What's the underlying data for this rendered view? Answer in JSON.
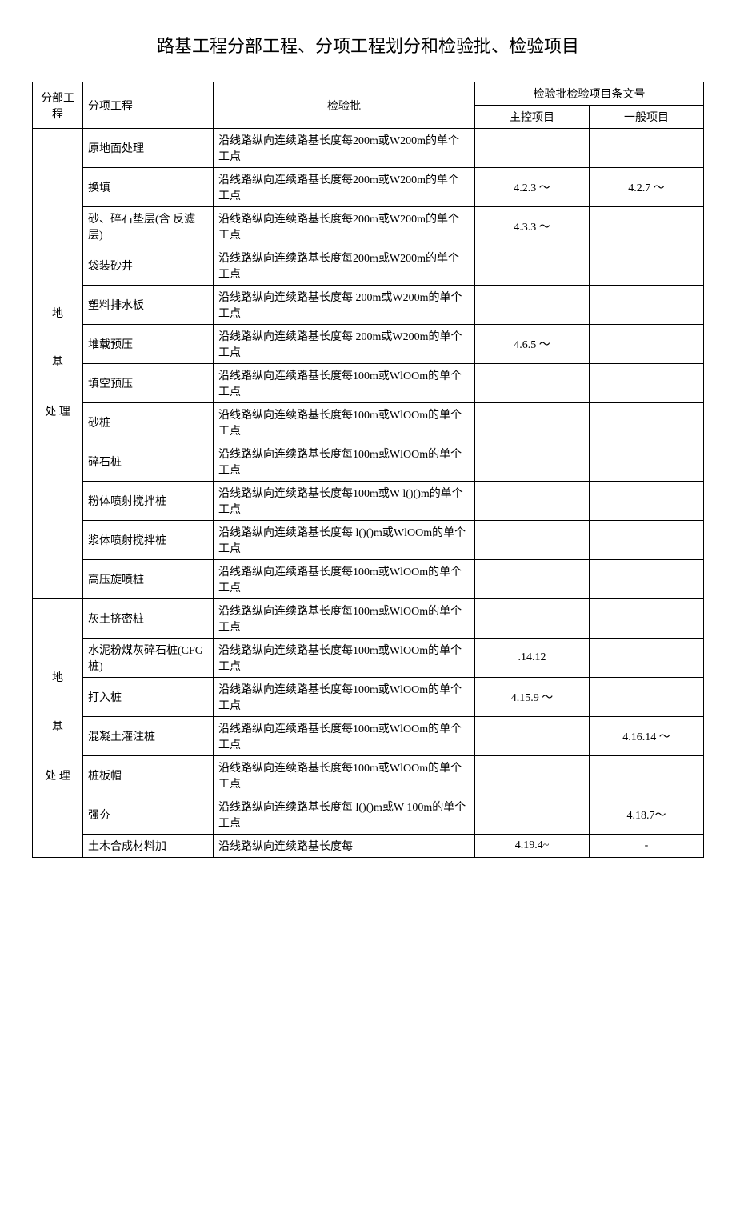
{
  "title": "路基工程分部工程、分项工程划分和检验批、检验项目",
  "header": {
    "c1": "分部工程",
    "c2": "分项工程",
    "c3": "检验批",
    "c45": "检验批检验项目条文号",
    "c4": "主控项目",
    "c5": "一般项目"
  },
  "group1_label": "地\n\n基\n\n处 理",
  "group2_label": "地\n\n基\n\n处 理",
  "rows1": [
    {
      "b": "原地面处理",
      "c": "沿线路纵向连续路基长度每200m或W200m的单个工点",
      "d": "",
      "e": ""
    },
    {
      "b": "换填",
      "c": "沿线路纵向连续路基长度每200m或W200m的单个工点",
      "d": "4.2.3 〜",
      "e": "4.2.7 〜"
    },
    {
      "b": "砂、碎石垫层(含 反滤层)",
      "c": "沿线路纵向连续路基长度每200m或W200m的单个工点",
      "d": "4.3.3 〜",
      "e": ""
    },
    {
      "b": "袋装砂井",
      "c": "沿线路纵向连续路基长度每200m或W200m的单个工点",
      "d": "",
      "e": ""
    },
    {
      "b": "塑料排水板",
      "c": "沿线路纵向连续路基长度每 200m或W200m的单个工点",
      "d": "",
      "e": ""
    },
    {
      "b": "堆载预压",
      "c": "沿线路纵向连续路基长度每 200m或W200m的单个工点",
      "d": "4.6.5 〜",
      "e": ""
    },
    {
      "b": "填空预压",
      "c": "沿线路纵向连续路基长度每100m或WlOOm的单个工点",
      "d": "",
      "e": ""
    },
    {
      "b": "砂桩",
      "c": "沿线路纵向连续路基长度每100m或WlOOm的单个工点",
      "d": "",
      "e": ""
    },
    {
      "b": "碎石桩",
      "c": "沿线路纵向连续路基长度每100m或WlOOm的单个工点",
      "d": "",
      "e": ""
    },
    {
      "b": "粉体喷射搅拌桩",
      "c": "沿线路纵向连续路基长度每100m或W l()()m的单个工点",
      "d": "",
      "e": ""
    },
    {
      "b": "浆体喷射搅拌桩",
      "c": "沿线路纵向连续路基长度每 l()()m或WlOOm的单个工点",
      "d": "",
      "e": ""
    },
    {
      "b": "高压旋喷桩",
      "c": "沿线路纵向连续路基长度每100m或WlOOm的单个工点",
      "d": "",
      "e": ""
    }
  ],
  "rows2": [
    {
      "b": "灰土挤密桩",
      "c": "沿线路纵向连续路基长度每100m或WlOOm的单个工点",
      "d": "",
      "e": ""
    },
    {
      "b": "水泥粉煤灰碎石桩(CFG桩)",
      "c": "沿线路纵向连续路基长度每100m或WlOOm的单个工点",
      "d": ".14.12",
      "e": ""
    },
    {
      "b": "打入桩",
      "c": "沿线路纵向连续路基长度每100m或WlOOm的单个工点",
      "d": "4.15.9 〜",
      "e": ""
    },
    {
      "b": "混凝土灌注桩",
      "c": "沿线路纵向连续路基长度每100m或WlOOm的单个工点",
      "d": "",
      "e": "4.16.14 〜"
    },
    {
      "b": "桩板帽",
      "c": "沿线路纵向连续路基长度每100m或WlOOm的单个工点",
      "d": "",
      "e": ""
    },
    {
      "b": "强夯",
      "c": "沿线路纵向连续路基长度每 l()()m或W 100m的单个工点",
      "d": "",
      "e": "4.18.7〜"
    },
    {
      "b": "土木合成材料加",
      "c": "沿线路纵向连续路基长度每",
      "d": "4.19.4~",
      "e": "-"
    }
  ]
}
